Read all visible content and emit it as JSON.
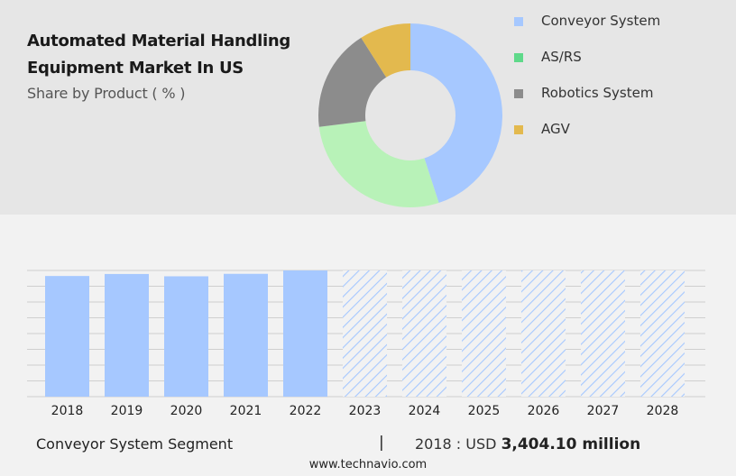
{
  "title": "Automated Material Handling Equipment Market In US",
  "subtitle": "Share by Product ( % )",
  "chart_data": [
    {
      "type": "pie",
      "title": "Automated Material Handling Equipment Market In US",
      "subtitle": "Share by Product ( % )",
      "legend_position": "right",
      "slices": [
        {
          "label": "Conveyor System",
          "value": 45,
          "color": "#a6c8ff"
        },
        {
          "label": "AS/RS",
          "value": 28,
          "color": "#b8f2b8"
        },
        {
          "label": "Robotics System",
          "value": 18,
          "color": "#8c8c8c"
        },
        {
          "label": "AGV",
          "value": 9,
          "color": "#e3b94e"
        }
      ],
      "legend_colors": [
        "#a6c8ff",
        "#5fd98a",
        "#8c8c8c",
        "#e3b94e"
      ]
    },
    {
      "type": "bar",
      "categories": [
        "2018",
        "2019",
        "2020",
        "2021",
        "2022",
        "2023",
        "2024",
        "2025",
        "2026",
        "2027",
        "2028"
      ],
      "values": [
        3404.1,
        3460,
        3395,
        3465,
        3560,
        3560,
        3560,
        3560,
        3560,
        3560,
        3560
      ],
      "forecast_start_index": 5,
      "ylim": [
        0,
        3560
      ],
      "grid": true,
      "color": "#a6c8ff"
    }
  ],
  "footer": {
    "segment": "Conveyor System Segment",
    "separator": "|",
    "year_label": "2018 : USD",
    "value": "3,404.10 million"
  },
  "source": "www.technavio.com"
}
